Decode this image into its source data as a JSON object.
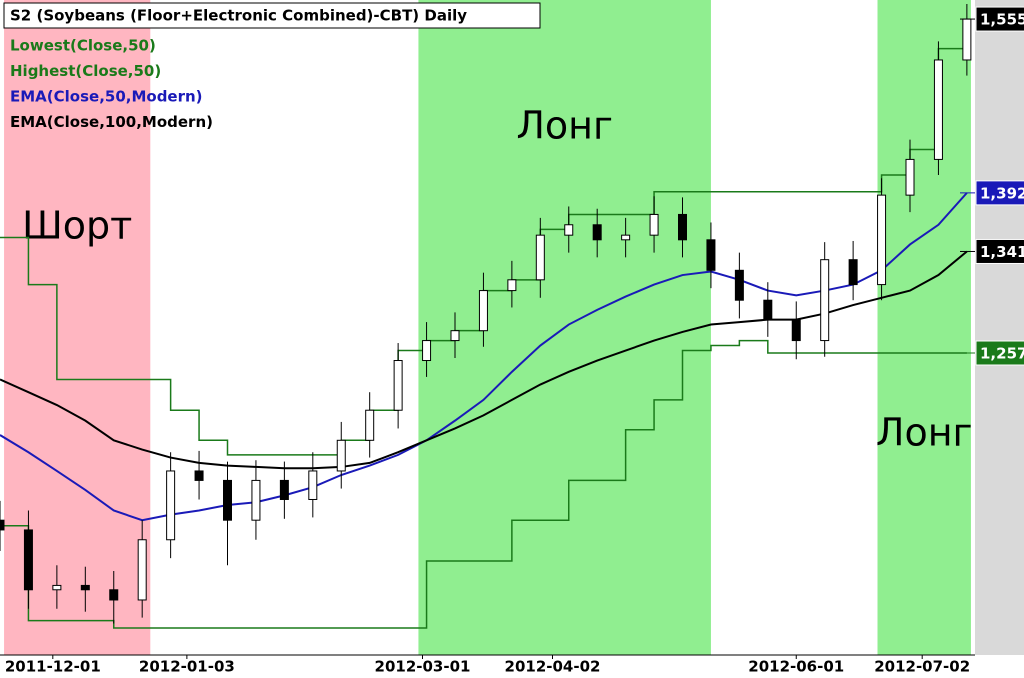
{
  "chart_data": {
    "type": "candlestick",
    "title": "S2 (Soybeans (Floor+Electronic Combined)-CBT) Daily",
    "x": [
      "2011-11-18",
      "2011-11-25",
      "2011-12-02",
      "2011-12-09",
      "2011-12-16",
      "2011-12-23",
      "2011-12-30",
      "2012-01-06",
      "2012-01-13",
      "2012-01-20",
      "2012-01-27",
      "2012-02-03",
      "2012-02-10",
      "2012-02-17",
      "2012-02-24",
      "2012-03-02",
      "2012-03-09",
      "2012-03-16",
      "2012-03-23",
      "2012-03-30",
      "2012-04-06",
      "2012-04-13",
      "2012-04-20",
      "2012-04-27",
      "2012-05-04",
      "2012-05-11",
      "2012-05-18",
      "2012-05-25",
      "2012-06-01",
      "2012-06-08",
      "2012-06-15",
      "2012-06-22",
      "2012-06-29",
      "2012-07-06",
      "2012-07-13"
    ],
    "open": [
      1130,
      1123,
      1081,
      1084,
      1081,
      1074,
      1116,
      1166,
      1159,
      1130,
      1159,
      1145,
      1166,
      1189,
      1212,
      1251,
      1267,
      1275,
      1308,
      1317,
      1355,
      1364,
      1351,
      1355,
      1373,
      1351,
      1325,
      1300,
      1284,
      1267,
      1334,
      1313,
      1390,
      1422,
      1515
    ],
    "high": [
      1144,
      1137,
      1098,
      1097,
      1094,
      1130,
      1180,
      1181,
      1173,
      1174,
      1173,
      1180,
      1203,
      1226,
      1265,
      1282,
      1290,
      1323,
      1333,
      1370,
      1380,
      1378,
      1370,
      1389,
      1388,
      1366,
      1340,
      1315,
      1299,
      1349,
      1350,
      1405,
      1440,
      1533,
      1570
    ],
    "low": [
      1108,
      1068,
      1068,
      1066,
      1058,
      1062,
      1103,
      1145,
      1098,
      1116,
      1131,
      1132,
      1153,
      1176,
      1198,
      1238,
      1253,
      1262,
      1294,
      1302,
      1340,
      1336,
      1336,
      1340,
      1336,
      1310,
      1285,
      1270,
      1252,
      1254,
      1300,
      1300,
      1375,
      1408,
      1500
    ],
    "close": [
      1123,
      1081,
      1084,
      1081,
      1074,
      1116,
      1166,
      1159,
      1130,
      1159,
      1145,
      1166,
      1189,
      1212,
      1251,
      1267,
      1275,
      1308,
      1317,
      1355,
      1364,
      1351,
      1355,
      1373,
      1351,
      1325,
      1300,
      1284,
      1267,
      1334,
      1313,
      1390,
      1422,
      1515,
      1555
    ],
    "up_color": "#ffffff",
    "down_color": "#000000",
    "series": [
      {
        "name": "Lowest(Close,50)",
        "color": "#1a7a1a",
        "step": true,
        "values": [
          1126,
          1060,
          1060,
          1060,
          1055,
          1055,
          1055,
          1055,
          1055,
          1055,
          1055,
          1055,
          1055,
          1055,
          1055,
          1101,
          1101,
          1101,
          1130,
          1130,
          1159,
          1159,
          1197,
          1220,
          1259,
          1263,
          1267,
          1257,
          1257,
          1257,
          1257,
          1257,
          1257,
          1257,
          1257
        ]
      },
      {
        "name": "Highest(Close,50)",
        "color": "#1a7a1a",
        "step": true,
        "values": [
          1353,
          1313,
          1236,
          1236,
          1236,
          1236,
          1212,
          1189,
          1178,
          1178,
          1178,
          1178,
          1189,
          1212,
          1259,
          1267,
          1275,
          1308,
          1317,
          1360,
          1373,
          1373,
          1373,
          1393,
          1393,
          1393,
          1393,
          1393,
          1393,
          1393,
          1393,
          1408,
          1431,
          1526,
          1555
        ]
      },
      {
        "name": "EMA(Close,50,Modern)",
        "color": "#1a1ab8",
        "step": false,
        "values": [
          1193,
          1180,
          1166,
          1152,
          1137,
          1130,
          1134,
          1137,
          1141,
          1143,
          1148,
          1154,
          1163,
          1170,
          1178,
          1189,
          1204,
          1220,
          1242,
          1263,
          1280,
          1292,
          1303,
          1313,
          1321,
          1324,
          1317,
          1308,
          1304,
          1308,
          1313,
          1325,
          1347,
          1364,
          1392
        ]
      },
      {
        "name": "EMA(Close,100,Modern)",
        "color": "#000000",
        "step": false,
        "values": [
          1236,
          1226,
          1216,
          1204,
          1189,
          1182,
          1176,
          1172,
          1170,
          1169,
          1168,
          1168,
          1169,
          1172,
          1180,
          1189,
          1198,
          1208,
          1220,
          1232,
          1242,
          1251,
          1259,
          1267,
          1274,
          1280,
          1282,
          1284,
          1284,
          1289,
          1296,
          1302,
          1308,
          1321,
          1341
        ]
      }
    ],
    "y_markers": [
      {
        "value": 1555,
        "label": "1,555",
        "color": "#000000"
      },
      {
        "value": 1392,
        "label": "1,392",
        "color": "#1a1ab8"
      },
      {
        "value": 1341,
        "label": "1,341",
        "color": "#000000"
      },
      {
        "value": 1257,
        "label": "1,257",
        "color": "#1a7a1a"
      }
    ],
    "regions": [
      {
        "label": "Шорт",
        "start": "2011-11-19",
        "end": "2011-12-25",
        "color": "#ffb6c1"
      },
      {
        "label": "Лонг",
        "start": "2012-02-29",
        "end": "2012-05-11",
        "color": "#90ee90"
      },
      {
        "label": "Лонг",
        "start": "2012-06-21",
        "end": "2012-07-14",
        "color": "#90ee90"
      }
    ],
    "xlim": [
      "2011-11-18",
      "2012-07-15"
    ],
    "xticks": [
      "2011-12-01",
      "2012-01-03",
      "2012-03-01",
      "2012-04-02",
      "2012-06-01",
      "2012-07-02"
    ],
    "ylim": [
      1037,
      1574
    ],
    "log_scale": true
  }
}
